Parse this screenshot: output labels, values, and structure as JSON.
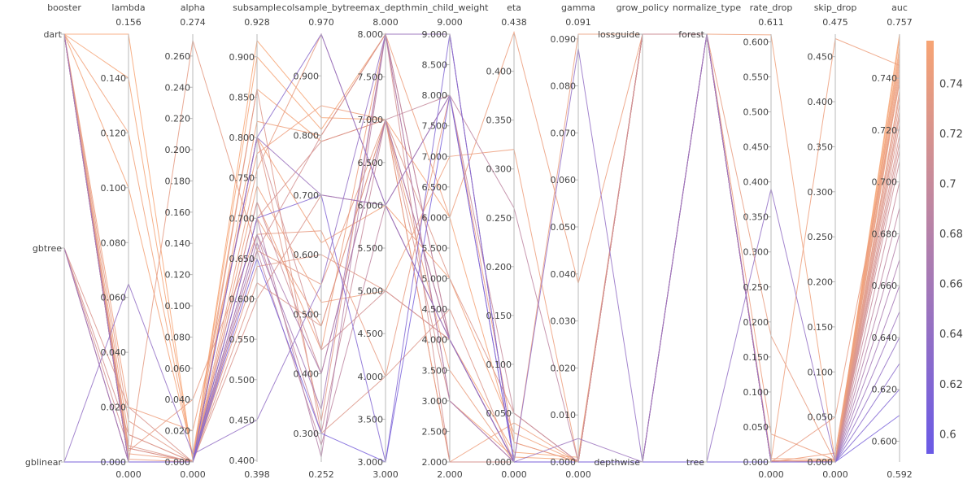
{
  "chart_data": {
    "type": "parallel_coordinates",
    "color_by": "auc",
    "colorscale": {
      "low": "#6a5ae6",
      "high": "#f7a474"
    },
    "colorbar": {
      "min": 0.592,
      "max": 0.757,
      "ticks": [
        0.6,
        0.62,
        0.64,
        0.66,
        0.68,
        0.7,
        0.72,
        0.74
      ],
      "labels": [
        "0.6",
        "0.62",
        "0.64",
        "0.66",
        "0.68",
        "0.7",
        "0.72",
        "0.74"
      ]
    },
    "dimensions": [
      {
        "key": "booster",
        "label": "booster",
        "categorical": true,
        "range": [
          0,
          2
        ],
        "ticks": [
          0,
          1,
          2
        ],
        "tick_labels": [
          "gblinear",
          "gbtree",
          "dart"
        ],
        "range_max_label": "",
        "range_min_label": ""
      },
      {
        "key": "lambda",
        "label": "lambda",
        "range": [
          0,
          0.156
        ],
        "ticks": [
          0,
          0.02,
          0.04,
          0.06,
          0.08,
          0.1,
          0.12,
          0.14
        ],
        "tick_labels": [
          "0.000",
          "0.020",
          "0.040",
          "0.060",
          "0.080",
          "0.100",
          "0.120",
          "0.140"
        ],
        "range_max_label": "0.156",
        "range_min_label": "0.000"
      },
      {
        "key": "alpha",
        "label": "alpha",
        "range": [
          0,
          0.274
        ],
        "ticks": [
          0,
          0.02,
          0.04,
          0.06,
          0.08,
          0.1,
          0.12,
          0.14,
          0.16,
          0.18,
          0.2,
          0.22,
          0.24,
          0.26
        ],
        "tick_labels": [
          "0.000",
          "0.020",
          "0.040",
          "0.060",
          "0.080",
          "0.100",
          "0.120",
          "0.140",
          "0.160",
          "0.180",
          "0.200",
          "0.220",
          "0.240",
          "0.260"
        ],
        "range_max_label": "0.274",
        "range_min_label": "0.000"
      },
      {
        "key": "subsample",
        "label": "subsample",
        "range": [
          0.398,
          0.928
        ],
        "ticks": [
          0.4,
          0.45,
          0.5,
          0.55,
          0.6,
          0.65,
          0.7,
          0.75,
          0.8,
          0.85,
          0.9
        ],
        "tick_labels": [
          "0.400",
          "0.450",
          "0.500",
          "0.550",
          "0.600",
          "0.650",
          "0.700",
          "0.750",
          "0.800",
          "0.850",
          "0.900"
        ],
        "range_max_label": "0.928",
        "range_min_label": "0.398"
      },
      {
        "key": "colsample_bytree",
        "label": "colsample_bytree",
        "range": [
          0.252,
          0.97
        ],
        "ticks": [
          0.3,
          0.4,
          0.5,
          0.6,
          0.7,
          0.8,
          0.9
        ],
        "tick_labels": [
          "0.300",
          "0.400",
          "0.500",
          "0.600",
          "0.700",
          "0.800",
          "0.900"
        ],
        "range_max_label": "0.970",
        "range_min_label": "0.252"
      },
      {
        "key": "max_depth",
        "label": "max_depth",
        "range": [
          3,
          8
        ],
        "ticks": [
          3,
          3.5,
          4,
          4.5,
          5,
          5.5,
          6,
          6.5,
          7,
          7.5,
          8
        ],
        "tick_labels": [
          "3.000",
          "3.500",
          "4.000",
          "4.500",
          "5.000",
          "5.500",
          "6.000",
          "6.500",
          "7.000",
          "7.500",
          "8.000"
        ],
        "range_max_label": "8.000",
        "range_min_label": "3.000"
      },
      {
        "key": "min_child_weight",
        "label": "min_child_weight",
        "range": [
          2,
          9
        ],
        "ticks": [
          2,
          2.5,
          3,
          3.5,
          4,
          4.5,
          5,
          5.5,
          6,
          6.5,
          7,
          7.5,
          8,
          8.5,
          9
        ],
        "tick_labels": [
          "2.000",
          "2.500",
          "3.000",
          "3.500",
          "4.000",
          "4.500",
          "5.000",
          "5.500",
          "6.000",
          "6.500",
          "7.000",
          "7.500",
          "8.000",
          "8.500",
          "9.000"
        ],
        "range_max_label": "9.000",
        "range_min_label": "2.000"
      },
      {
        "key": "eta",
        "label": "eta",
        "range": [
          0,
          0.438
        ],
        "ticks": [
          0,
          0.05,
          0.1,
          0.15,
          0.2,
          0.25,
          0.3,
          0.35,
          0.4
        ],
        "tick_labels": [
          "0.000",
          "0.050",
          "0.100",
          "0.150",
          "0.200",
          "0.250",
          "0.300",
          "0.350",
          "0.400"
        ],
        "range_max_label": "0.438",
        "range_min_label": "0.000"
      },
      {
        "key": "gamma",
        "label": "gamma",
        "range": [
          0,
          0.091
        ],
        "ticks": [
          0,
          0.01,
          0.02,
          0.03,
          0.04,
          0.05,
          0.06,
          0.07,
          0.08,
          0.09
        ],
        "tick_labels": [
          "0.000",
          "0.010",
          "0.020",
          "0.030",
          "0.040",
          "0.050",
          "0.060",
          "0.070",
          "0.080",
          "0.090"
        ],
        "range_max_label": "0.091",
        "range_min_label": "0.000"
      },
      {
        "key": "grow_policy",
        "label": "grow_policy",
        "categorical": true,
        "range": [
          0,
          1
        ],
        "ticks": [
          0,
          1
        ],
        "tick_labels": [
          "depthwise",
          "lossguide"
        ],
        "range_max_label": "",
        "range_min_label": ""
      },
      {
        "key": "normalize_type",
        "label": "normalize_type",
        "categorical": true,
        "range": [
          0,
          1
        ],
        "ticks": [
          0,
          1
        ],
        "tick_labels": [
          "tree",
          "forest"
        ],
        "range_max_label": "",
        "range_min_label": ""
      },
      {
        "key": "rate_drop",
        "label": "rate_drop",
        "range": [
          0,
          0.611
        ],
        "ticks": [
          0,
          0.05,
          0.1,
          0.15,
          0.2,
          0.25,
          0.3,
          0.35,
          0.4,
          0.45,
          0.5,
          0.55,
          0.6
        ],
        "tick_labels": [
          "0.000",
          "0.050",
          "0.100",
          "0.150",
          "0.200",
          "0.250",
          "0.300",
          "0.350",
          "0.400",
          "0.450",
          "0.500",
          "0.550",
          "0.600"
        ],
        "range_max_label": "0.611",
        "range_min_label": "0.000"
      },
      {
        "key": "skip_drop",
        "label": "skip_drop",
        "range": [
          0,
          0.475
        ],
        "ticks": [
          0,
          0.05,
          0.1,
          0.15,
          0.2,
          0.25,
          0.3,
          0.35,
          0.4,
          0.45
        ],
        "tick_labels": [
          "0.000",
          "0.050",
          "0.100",
          "0.150",
          "0.200",
          "0.250",
          "0.300",
          "0.350",
          "0.400",
          "0.450"
        ],
        "range_max_label": "0.475",
        "range_min_label": "0.000"
      },
      {
        "key": "auc",
        "label": "auc",
        "range": [
          0.592,
          0.757
        ],
        "ticks": [
          0.6,
          0.62,
          0.64,
          0.66,
          0.68,
          0.7,
          0.72,
          0.74
        ],
        "tick_labels": [
          "0.600",
          "0.620",
          "0.640",
          "0.660",
          "0.680",
          "0.700",
          "0.720",
          "0.740"
        ],
        "range_max_label": "0.757",
        "range_min_label": "0.592"
      }
    ],
    "rows": [
      [
        2,
        0.156,
        0.001,
        0.92,
        0.83,
        7,
        4,
        0.01,
        0.001,
        1,
        1,
        0.001,
        0.002,
        0.757
      ],
      [
        2,
        0.14,
        0.002,
        0.9,
        0.81,
        8,
        3,
        0.005,
        0.0005,
        1,
        1,
        0.002,
        0.001,
        0.755
      ],
      [
        2,
        0.1,
        0.005,
        0.86,
        0.79,
        7,
        6,
        0.02,
        0.0,
        1,
        1,
        0.0,
        0.0,
        0.752
      ],
      [
        2,
        0.12,
        0.003,
        0.8,
        0.62,
        6,
        5,
        0.03,
        0.0,
        1,
        1,
        0.005,
        0.003,
        0.75
      ],
      [
        2,
        0.01,
        0.0,
        0.82,
        0.8,
        8,
        4,
        0.0,
        0.0,
        1,
        1,
        0.61,
        0.0,
        0.748
      ],
      [
        2,
        0.02,
        0.02,
        0.78,
        0.85,
        7,
        2,
        0.04,
        0.0,
        1,
        1,
        0.0,
        0.01,
        0.746
      ],
      [
        2,
        0.005,
        0.0,
        0.74,
        0.52,
        5,
        7,
        0.32,
        0.0,
        1,
        1,
        0.002,
        0.47,
        0.745
      ],
      [
        2,
        0.003,
        0.001,
        0.72,
        0.44,
        8,
        6,
        0.44,
        0.038,
        1,
        1,
        0.04,
        0.002,
        0.744
      ],
      [
        2,
        0.001,
        0.0,
        0.7,
        0.48,
        7,
        3.5,
        0.0,
        0.091,
        1,
        1,
        0.0,
        0.0,
        0.742
      ],
      [
        2,
        0.0,
        0.0,
        0.76,
        0.97,
        6,
        4,
        0.0,
        0.0,
        1,
        1,
        0.18,
        0.0,
        0.74
      ],
      [
        2,
        0.004,
        0.04,
        0.68,
        0.64,
        4,
        8,
        0.02,
        0.0,
        1,
        1,
        0.0,
        0.05,
        0.738
      ],
      [
        2,
        0.0,
        0.27,
        0.66,
        0.55,
        7,
        2,
        0.0,
        0.0,
        1,
        1,
        0.0,
        0.0,
        0.735
      ],
      [
        2,
        0.015,
        0.0,
        0.64,
        0.6,
        5,
        4,
        0.0,
        0.0,
        1,
        1,
        0.002,
        0.0,
        0.733
      ],
      [
        2,
        0.0,
        0.0,
        0.8,
        0.32,
        8,
        9,
        0.0,
        0.0,
        1,
        1,
        0.0,
        0.0,
        0.73
      ],
      [
        2,
        0.006,
        0.0,
        0.86,
        0.3,
        4,
        4.5,
        0.0,
        0.0,
        1,
        1,
        0.0,
        0.0,
        0.727
      ],
      [
        2,
        0.0,
        0.0,
        0.62,
        0.48,
        7,
        5,
        0.05,
        0.0,
        1,
        1,
        0.0,
        0.0,
        0.725
      ],
      [
        1,
        0.02,
        0.0,
        0.6,
        0.7,
        6,
        4,
        0.0,
        0.0,
        1,
        1,
        0.0,
        0.0,
        0.722
      ],
      [
        1,
        0.01,
        0.0,
        0.7,
        0.79,
        7,
        3,
        0.0,
        0.0,
        1,
        1,
        0.0,
        0.0,
        0.718
      ],
      [
        1,
        0.005,
        0.0,
        0.66,
        0.8,
        8,
        2,
        0.0,
        0.0,
        1,
        1,
        0.0,
        0.0,
        0.715
      ],
      [
        1,
        0.0,
        0.0,
        0.8,
        0.44,
        5,
        4,
        0.0,
        0.0,
        1,
        1,
        0.0,
        0.0,
        0.712
      ],
      [
        1,
        0.0,
        0.0,
        0.72,
        0.4,
        7,
        4,
        0.0,
        0.0,
        1,
        1,
        0.0,
        0.0,
        0.708
      ],
      [
        2,
        0.0,
        0.0,
        0.68,
        0.3,
        7,
        8,
        0.05,
        0.0,
        0,
        1,
        0.0,
        0.0,
        0.7
      ],
      [
        2,
        0.0,
        0.0,
        0.66,
        0.28,
        6,
        8,
        0.26,
        0.0,
        0,
        1,
        0.0,
        0.0,
        0.69
      ],
      [
        2,
        0.0,
        0.0,
        0.7,
        0.26,
        8,
        4,
        0.0,
        0.0,
        0,
        1,
        0.0,
        0.0,
        0.68
      ],
      [
        2,
        0.0,
        0.0,
        0.68,
        0.4,
        7,
        4,
        0.0,
        0.0,
        0,
        1,
        0.0,
        0.0,
        0.67
      ],
      [
        2,
        0.0,
        0.0,
        0.67,
        0.34,
        8,
        3,
        0.0,
        0.0,
        0,
        1,
        0.0,
        0.0,
        0.66
      ],
      [
        1,
        0.0,
        0.0,
        0.8,
        0.7,
        6,
        8,
        0.0,
        0.005,
        0,
        1,
        0.0,
        0.0,
        0.65
      ],
      [
        0,
        0.065,
        0.005,
        0.45,
        0.55,
        8,
        9,
        0.0,
        0.088,
        0,
        0,
        0.39,
        0.0,
        0.64
      ],
      [
        0,
        0.0,
        0.0,
        0.8,
        0.97,
        6,
        4,
        0.0,
        0.0,
        0,
        0,
        0.0,
        0.0,
        0.63
      ],
      [
        0,
        0.0,
        0.0,
        0.7,
        0.7,
        3,
        9,
        0.0,
        0.0,
        0,
        0,
        0.0,
        0.0,
        0.62
      ],
      [
        0,
        0.0,
        0.0,
        0.65,
        0.3,
        3,
        8,
        0.0,
        0.0,
        0,
        0,
        0.0,
        0.0,
        0.61
      ]
    ]
  }
}
